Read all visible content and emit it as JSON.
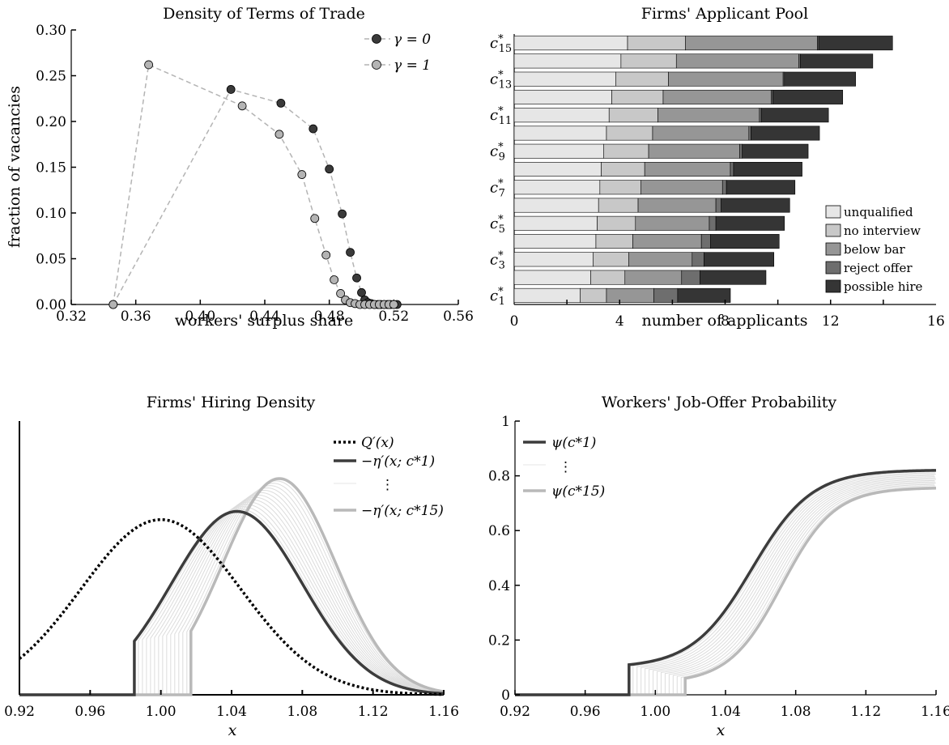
{
  "chart_data": [
    {
      "type": "scatter",
      "title": "Density of Terms of Trade",
      "xlabel": "workers' surplus share",
      "ylabel": "fraction of vacancies",
      "xlim": [
        0.32,
        0.56
      ],
      "ylim": [
        0,
        0.3
      ],
      "xticks": [
        "0.32",
        "0.36",
        "0.40",
        "0.44",
        "0.48",
        "0.52",
        "0.56"
      ],
      "yticks": [
        "0.00",
        "0.05",
        "0.10",
        "0.15",
        "0.20",
        "0.25",
        "0.30"
      ],
      "legend_position": "top-right",
      "series": [
        {
          "name": "γ = 0",
          "color": "#3a3a3a",
          "x": [
            0.346,
            0.419,
            0.45,
            0.47,
            0.48,
            0.488,
            0.493,
            0.497,
            0.5,
            0.502,
            0.504,
            0.506,
            0.508,
            0.51,
            0.512,
            0.514,
            0.516,
            0.518,
            0.52,
            0.522
          ],
          "y": [
            0.0,
            0.235,
            0.22,
            0.192,
            0.148,
            0.099,
            0.057,
            0.029,
            0.013,
            0.005,
            0.002,
            0.001,
            0.0,
            0.0,
            0.0,
            0.0,
            0.0,
            0.0,
            0.0,
            0.0
          ]
        },
        {
          "name": "γ = 1",
          "color": "#b4b4b4",
          "x": [
            0.346,
            0.368,
            0.426,
            0.449,
            0.463,
            0.471,
            0.478,
            0.483,
            0.487,
            0.49,
            0.493,
            0.496,
            0.499,
            0.502,
            0.505,
            0.508,
            0.511,
            0.514,
            0.517,
            0.52
          ],
          "y": [
            0.0,
            0.262,
            0.217,
            0.186,
            0.142,
            0.094,
            0.054,
            0.027,
            0.012,
            0.005,
            0.002,
            0.001,
            0.0,
            0.0,
            0.0,
            0.0,
            0.0,
            0.0,
            0.0,
            0.0
          ]
        }
      ]
    },
    {
      "type": "bar",
      "orientation": "horizontal",
      "stacked": true,
      "title": "Firms' Applicant Pool",
      "xlabel": "number of applicants",
      "ylabel": "",
      "xlim": [
        0,
        16
      ],
      "xticks": [
        "0",
        "4",
        "8",
        "12",
        "16"
      ],
      "ytick_labels": [
        "c*1",
        "c*3",
        "c*5",
        "c*7",
        "c*9",
        "c*11",
        "c*13",
        "c*15"
      ],
      "legend_position": "bottom-right",
      "categories": [
        1,
        2,
        3,
        4,
        5,
        6,
        7,
        8,
        9,
        10,
        11,
        12,
        13,
        14,
        15
      ],
      "series": [
        {
          "name": "unqualified",
          "color": "#e6e6e6",
          "values": [
            2.5,
            2.9,
            3.0,
            3.1,
            3.15,
            3.2,
            3.25,
            3.3,
            3.4,
            3.5,
            3.6,
            3.7,
            3.85,
            4.05,
            4.3
          ]
        },
        {
          "name": "no interview",
          "color": "#c8c8c8",
          "values": [
            1.0,
            1.3,
            1.35,
            1.4,
            1.45,
            1.5,
            1.55,
            1.65,
            1.7,
            1.75,
            1.85,
            1.95,
            2.0,
            2.1,
            2.2
          ]
        },
        {
          "name": "below bar",
          "color": "#969696",
          "values": [
            1.8,
            2.15,
            2.4,
            2.6,
            2.8,
            2.95,
            3.1,
            3.25,
            3.45,
            3.65,
            3.85,
            4.1,
            4.35,
            4.65,
            5.0
          ]
        },
        {
          "name": "reject offer",
          "color": "#6e6e6e",
          "values": [
            0.9,
            0.7,
            0.45,
            0.35,
            0.25,
            0.2,
            0.15,
            0.12,
            0.1,
            0.08,
            0.07,
            0.06,
            0.05,
            0.05,
            0.05
          ]
        },
        {
          "name": "possible hire",
          "color": "#353535",
          "values": [
            2.0,
            2.5,
            2.65,
            2.6,
            2.6,
            2.6,
            2.6,
            2.6,
            2.5,
            2.6,
            2.55,
            2.65,
            2.7,
            2.75,
            2.8
          ]
        }
      ]
    },
    {
      "type": "line",
      "title": "Firms' Hiring Density",
      "xlabel": "x",
      "ylabel": "",
      "xlim": [
        0.92,
        1.16
      ],
      "xticks": [
        "0.92",
        "0.96",
        "1.00",
        "1.04",
        "1.08",
        "1.12",
        "1.16"
      ],
      "legend_position": "top-right",
      "legend": [
        "Q′(x)",
        "−η′(x; c*1)",
        "⋮",
        "−η′(x; c*15)"
      ],
      "series": [
        {
          "name": "Q′(x)",
          "style": "dotted",
          "color": "#000000",
          "kind": "normal",
          "mu": 1.0,
          "sigma": 0.045,
          "peak": 0.64
        },
        {
          "name": "−η′(x; c*1)",
          "color": "#3c3c3c",
          "cut": 0.985,
          "mu": 1.043,
          "sigma": 0.037,
          "peak": 0.67
        },
        {
          "name": "−η′(x; c*15)",
          "color": "#b9b9b9",
          "cut": 1.017,
          "mu": 1.067,
          "sigma": 0.032,
          "peak": 0.79
        }
      ]
    },
    {
      "type": "line",
      "title": "Workers' Job-Offer Probability",
      "xlabel": "x",
      "ylabel": "",
      "xlim": [
        0.92,
        1.16
      ],
      "ylim": [
        0,
        1
      ],
      "xticks": [
        "0.92",
        "0.96",
        "1.00",
        "1.04",
        "1.08",
        "1.12",
        "1.16"
      ],
      "yticks": [
        "0",
        "0.2",
        "0.4",
        "0.6",
        "0.8",
        "1"
      ],
      "legend_position": "top-left",
      "legend": [
        "ψ(c*1)",
        "⋮",
        "ψ(c*15)"
      ],
      "series": [
        {
          "name": "ψ(c*1)",
          "color": "#3c3c3c",
          "cut": 0.985,
          "jump": 0.11,
          "final": 0.82,
          "mid": 1.055,
          "scale": 0.017
        },
        {
          "name": "ψ(c*15)",
          "color": "#b9b9b9",
          "cut": 1.017,
          "jump": 0.06,
          "final": 0.755,
          "mid": 1.072,
          "scale": 0.015
        }
      ]
    }
  ]
}
